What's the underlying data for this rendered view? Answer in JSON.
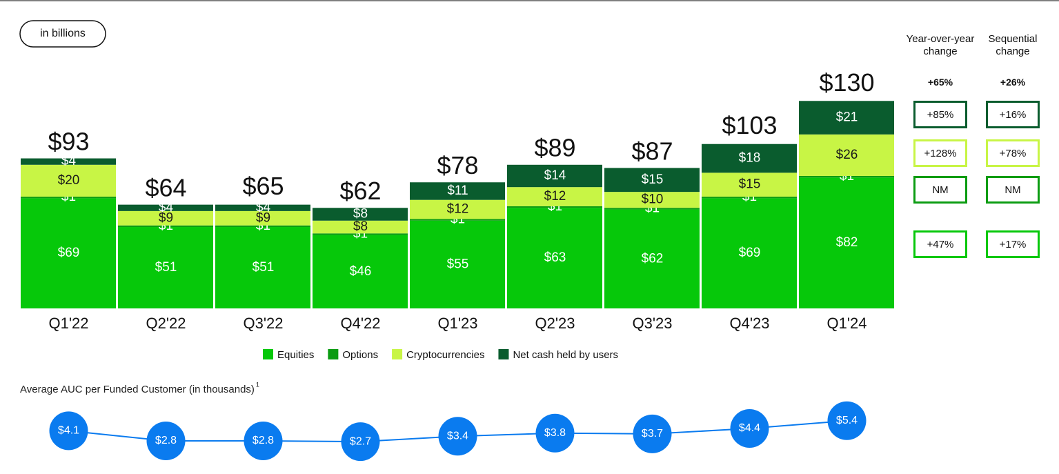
{
  "unit_label": "in billions",
  "chart_data": [
    {
      "type": "bar",
      "categories": [
        "Q1'22",
        "Q2'22",
        "Q3'22",
        "Q4'22",
        "Q1'23",
        "Q2'23",
        "Q3'23",
        "Q4'23",
        "Q1'24"
      ],
      "ylim": [
        0,
        150
      ],
      "series": [
        {
          "name": "Equities",
          "color": "#06c80a",
          "label_color": "#ffffff",
          "values": [
            69,
            51,
            51,
            46,
            55,
            63,
            62,
            69,
            82
          ],
          "value_labels": [
            "$69",
            "$51",
            "$51",
            "$46",
            "$55",
            "$63",
            "$62",
            "$69",
            "$82"
          ]
        },
        {
          "name": "Options",
          "color": "#0b9c12",
          "label_color": "#ffffff",
          "values": [
            1,
            1,
            1,
            1,
            1,
            1,
            1,
            1,
            1
          ],
          "value_labels": [
            "$1",
            "$1",
            "$1",
            "$1",
            "$1",
            "$1",
            "$1",
            "$1",
            "$1"
          ]
        },
        {
          "name": "Cryptocurrencies",
          "color": "#c8f545",
          "label_color": "#1a1a1a",
          "values": [
            20,
            9,
            9,
            8,
            12,
            12,
            10,
            15,
            26
          ],
          "value_labels": [
            "$20",
            "$9",
            "$9",
            "$8",
            "$12",
            "$12",
            "$10",
            "$15",
            "$26"
          ]
        },
        {
          "name": "Net cash held by users",
          "color": "#0a5c2e",
          "label_color": "#ffffff",
          "values": [
            4,
            4,
            4,
            8,
            11,
            14,
            15,
            18,
            21
          ],
          "value_labels": [
            "$4",
            "$4",
            "$4",
            "$8",
            "$11",
            "$14",
            "$15",
            "$18",
            "$21"
          ]
        }
      ],
      "totals": [
        93,
        64,
        65,
        62,
        78,
        89,
        87,
        103,
        130
      ],
      "total_labels": [
        "$93",
        "$64",
        "$65",
        "$62",
        "$78",
        "$89",
        "$87",
        "$103",
        "$130"
      ]
    },
    {
      "type": "line",
      "title": "Average AUC per Funded Customer (in thousands)",
      "title_note": "1",
      "color": "#0a7bef",
      "ylim": [
        2,
        6
      ],
      "values": [
        4.1,
        2.8,
        2.8,
        2.7,
        3.4,
        3.8,
        3.7,
        4.4,
        5.4
      ],
      "value_labels": [
        "$4.1",
        "$2.8",
        "$2.8",
        "$2.7",
        "$3.4",
        "$3.8",
        "$3.7",
        "$4.4",
        "$5.4"
      ]
    }
  ],
  "change_table": {
    "headers": [
      "Year-over-year change",
      "Sequential change"
    ],
    "total": [
      "+65%",
      "+26%"
    ],
    "rows": [
      [
        "+85%",
        "+16%"
      ],
      [
        "+128%",
        "+78%"
      ],
      [
        "NM",
        "NM"
      ],
      [
        "+47%",
        "+17%"
      ]
    ]
  }
}
